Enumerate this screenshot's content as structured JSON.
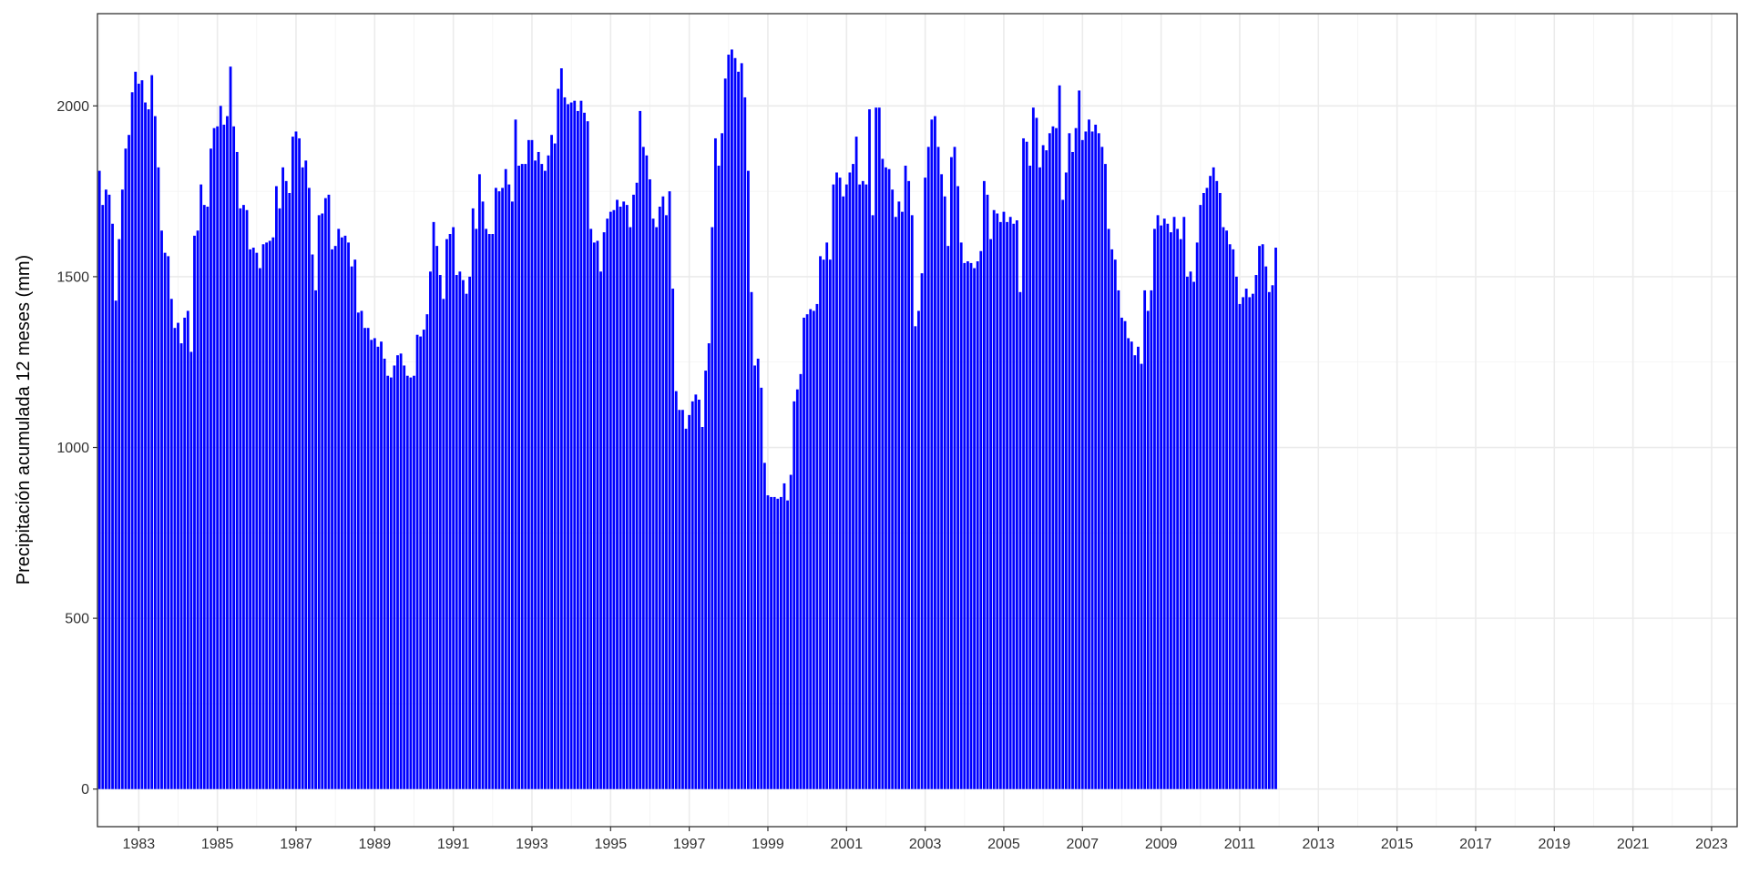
{
  "chart_data": {
    "type": "bar",
    "ylabel": "Precipitación acumulada 12 meses (mm)",
    "xlabel": "",
    "ylim": [
      -110,
      2270
    ],
    "xlim": [
      1981.95,
      2023.65
    ],
    "grid": true,
    "bar_color": "#0000FF",
    "y_ticks": [
      0,
      500,
      1000,
      1500,
      2000
    ],
    "x_ticks": [
      1983,
      1985,
      1987,
      1989,
      1991,
      1993,
      1995,
      1997,
      1999,
      2001,
      2003,
      2005,
      2007,
      2009,
      2011,
      2013,
      2015,
      2017,
      2019,
      2021,
      2023
    ],
    "start": "1982-01",
    "monthly_values": [
      1810,
      1710,
      1755,
      1740,
      1655,
      1430,
      1610,
      1755,
      1875,
      1915,
      2040,
      2100,
      2065,
      2075,
      2010,
      1990,
      2090,
      1970,
      1820,
      1635,
      1570,
      1560,
      1435,
      1350,
      1365,
      1305,
      1380,
      1400,
      1280,
      1620,
      1635,
      1770,
      1710,
      1705,
      1875,
      1935,
      1940,
      2000,
      1945,
      1970,
      2115,
      1940,
      1865,
      1700,
      1710,
      1695,
      1580,
      1585,
      1570,
      1525,
      1595,
      1600,
      1605,
      1615,
      1765,
      1700,
      1820,
      1780,
      1745,
      1910,
      1925,
      1905,
      1820,
      1840,
      1760,
      1565,
      1460,
      1680,
      1685,
      1730,
      1740,
      1580,
      1590,
      1640,
      1615,
      1620,
      1600,
      1530,
      1550,
      1395,
      1400,
      1350,
      1350,
      1315,
      1320,
      1295,
      1310,
      1260,
      1210,
      1205,
      1240,
      1270,
      1275,
      1240,
      1210,
      1205,
      1210,
      1330,
      1325,
      1345,
      1390,
      1515,
      1660,
      1590,
      1505,
      1435,
      1610,
      1625,
      1645,
      1505,
      1515,
      1490,
      1450,
      1500,
      1700,
      1640,
      1800,
      1720,
      1640,
      1625,
      1625,
      1760,
      1750,
      1760,
      1815,
      1770,
      1720,
      1960,
      1825,
      1830,
      1830,
      1900,
      1900,
      1840,
      1865,
      1830,
      1810,
      1855,
      1915,
      1890,
      2050,
      2110,
      2025,
      2005,
      2010,
      2015,
      1985,
      2015,
      1980,
      1955,
      1640,
      1600,
      1605,
      1515,
      1630,
      1670,
      1690,
      1695,
      1725,
      1705,
      1720,
      1710,
      1645,
      1740,
      1775,
      1985,
      1880,
      1855,
      1785,
      1670,
      1645,
      1705,
      1735,
      1680,
      1750,
      1465,
      1165,
      1110,
      1110,
      1055,
      1095,
      1135,
      1155,
      1140,
      1060,
      1225,
      1305,
      1645,
      1905,
      1825,
      1920,
      2080,
      2150,
      2165,
      2140,
      2100,
      2125,
      2025,
      1810,
      1455,
      1240,
      1260,
      1175,
      955,
      860,
      855,
      855,
      850,
      855,
      895,
      845,
      920,
      1135,
      1170,
      1215,
      1380,
      1390,
      1405,
      1400,
      1420,
      1560,
      1550,
      1600,
      1550,
      1770,
      1805,
      1790,
      1735,
      1770,
      1805,
      1830,
      1910,
      1770,
      1780,
      1770,
      1990,
      1680,
      1995,
      1995,
      1845,
      1820,
      1815,
      1755,
      1675,
      1720,
      1690,
      1825,
      1780,
      1680,
      1355,
      1400,
      1510,
      1790,
      1880,
      1960,
      1970,
      1880,
      1800,
      1735,
      1590,
      1850,
      1880,
      1765,
      1600,
      1540,
      1545,
      1540,
      1525,
      1545,
      1575,
      1780,
      1740,
      1610,
      1695,
      1685,
      1660,
      1690,
      1660,
      1675,
      1655,
      1665,
      1455,
      1905,
      1895,
      1825,
      1995,
      1965,
      1820,
      1885,
      1870,
      1920,
      1940,
      1935,
      2060,
      1725,
      1805,
      1920,
      1865,
      1935,
      2045,
      1900,
      1925,
      1960,
      1925,
      1945,
      1920,
      1880,
      1830,
      1640,
      1580,
      1550,
      1460,
      1380,
      1370,
      1320,
      1310,
      1270,
      1295,
      1245,
      1460,
      1400,
      1460,
      1640,
      1680,
      1650,
      1670,
      1655,
      1630,
      1675,
      1640,
      1610,
      1675,
      1500,
      1515,
      1485,
      1600,
      1710,
      1745,
      1760,
      1795,
      1820,
      1780,
      1745,
      1645,
      1635,
      1595,
      1580,
      1500,
      1420,
      1440,
      1465,
      1440,
      1450,
      1505,
      1590,
      1595,
      1530,
      1455,
      1475,
      1585
    ]
  }
}
